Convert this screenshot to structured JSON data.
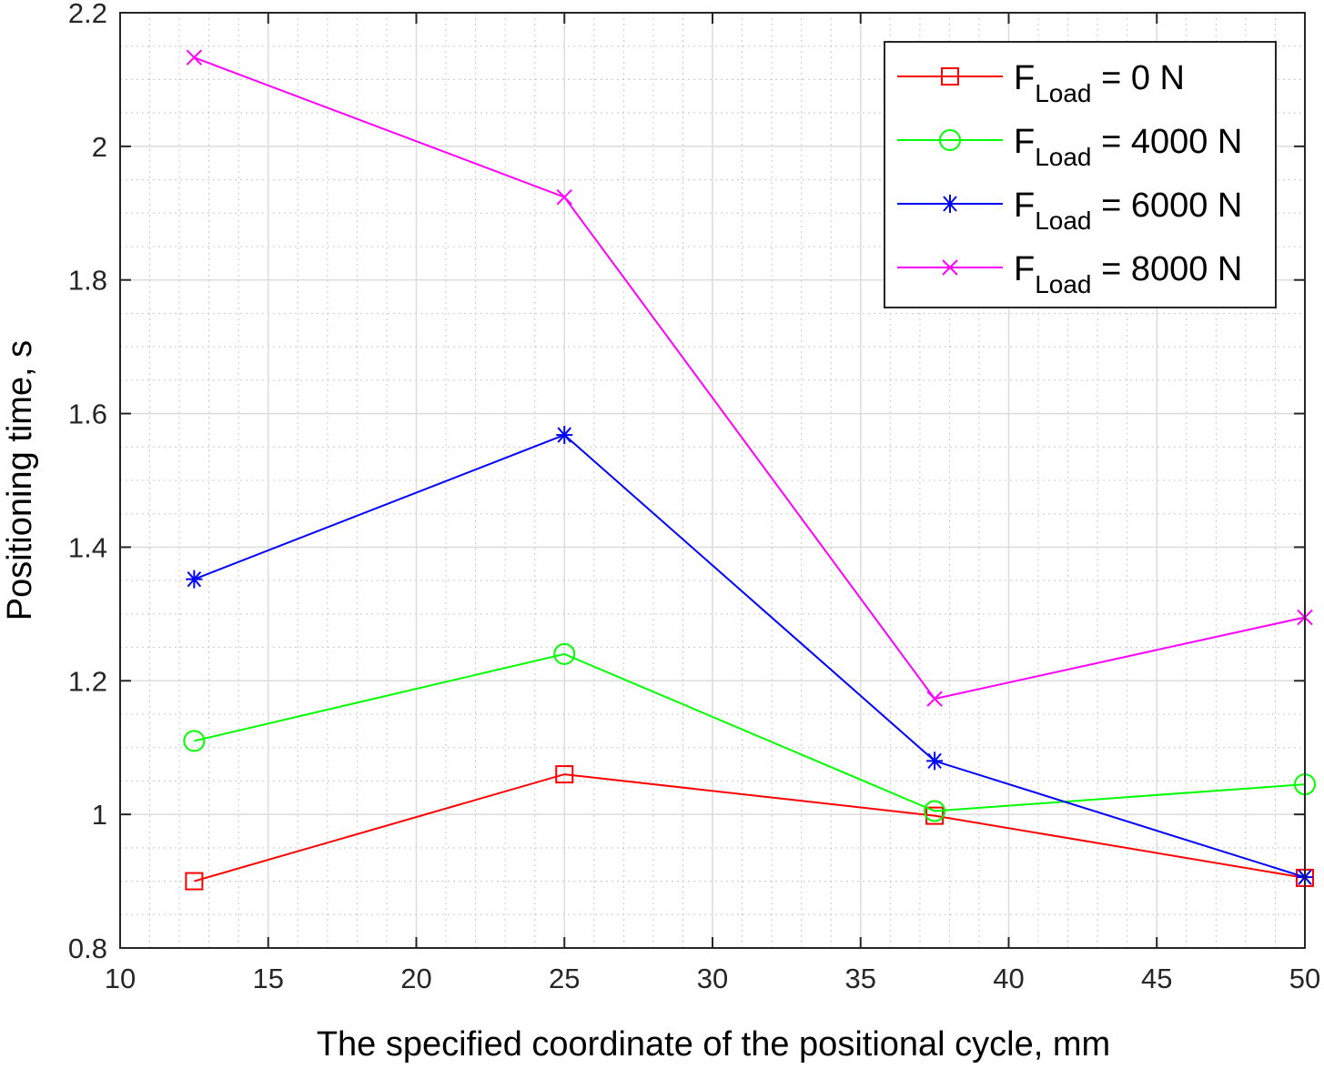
{
  "chart_data": {
    "type": "line",
    "xlabel": "The specified coordinate of the positional cycle, mm",
    "ylabel": "Positioning time, s",
    "xlim": [
      10,
      50
    ],
    "ylim": [
      0.8,
      2.2
    ],
    "xticks": [
      10,
      15,
      20,
      25,
      30,
      35,
      40,
      45,
      50
    ],
    "yticks": [
      0.8,
      1,
      1.2,
      1.4,
      1.6,
      1.8,
      2,
      2.2
    ],
    "ytick_labels": [
      "0.8",
      "1",
      "1.2",
      "1.4",
      "1.6",
      "1.8",
      "2",
      "2.2"
    ],
    "grid": true,
    "minor_grid": true,
    "legend_position": "top-right",
    "x": [
      12.5,
      25,
      37.5,
      50
    ],
    "series": [
      {
        "name": "F_Load = 0 N",
        "label_main": "F",
        "label_sub": "Load",
        "label_rest": " = 0 N",
        "color": "#ff0000",
        "marker": "square",
        "values": [
          0.9,
          1.06,
          0.998,
          0.905
        ]
      },
      {
        "name": "F_Load = 4000 N",
        "label_main": "F",
        "label_sub": "Load",
        "label_rest": " = 4000 N",
        "color": "#00ff00",
        "marker": "circle",
        "values": [
          1.11,
          1.24,
          1.005,
          1.045
        ]
      },
      {
        "name": "F_Load = 6000 N",
        "label_main": "F",
        "label_sub": "Load",
        "label_rest": " = 6000 N",
        "color": "#0000ff",
        "marker": "asterisk",
        "values": [
          1.352,
          1.568,
          1.08,
          0.906
        ]
      },
      {
        "name": "F_Load = 8000 N",
        "label_main": "F",
        "label_sub": "Load",
        "label_rest": " = 8000 N",
        "color": "#ff00ff",
        "marker": "cross",
        "values": [
          2.133,
          1.924,
          1.173,
          1.295
        ]
      }
    ]
  }
}
